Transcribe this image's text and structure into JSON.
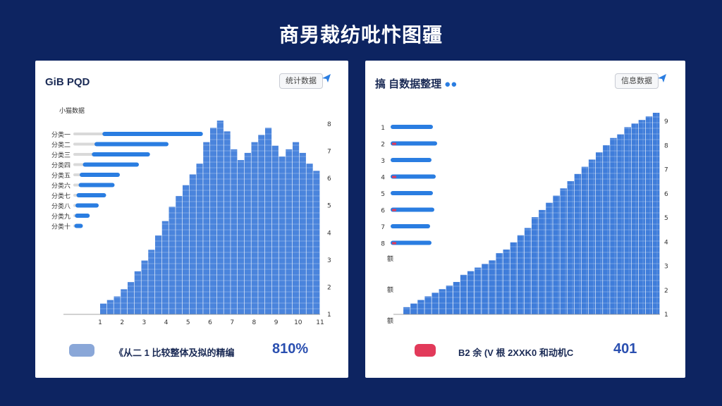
{
  "page": {
    "title": "商男裁纺吡忭图疆"
  },
  "chart_data": [
    {
      "type": "bar",
      "title": "GiB PQD",
      "button_label": "统计数据",
      "subtitle": "小猫数据",
      "categories": [
        "分类一",
        "分类二",
        "分类三",
        "分类四",
        "分类五",
        "分类六",
        "分类七",
        "分类八",
        "分类九",
        "分类十"
      ],
      "values": [
        95,
        70,
        55,
        53,
        38,
        34,
        28,
        22,
        14,
        8
      ],
      "secondary_values": [
        55,
        40,
        35,
        18,
        12,
        10,
        6,
        4,
        3,
        2
      ],
      "histogram": [
        6,
        8,
        10,
        14,
        18,
        24,
        30,
        36,
        44,
        52,
        60,
        66,
        72,
        78,
        84,
        96,
        104,
        108,
        102,
        92,
        86,
        90,
        96,
        100,
        104,
        94,
        88,
        92,
        96,
        90,
        84,
        80
      ],
      "y_ticks_right": [
        "8",
        "7",
        "6",
        "5",
        "4",
        "3",
        "2",
        "1"
      ],
      "x_ticks": [
        "1",
        "2",
        "3",
        "4",
        "5",
        "6",
        "7",
        "8",
        "9",
        "10",
        "11"
      ],
      "footer": {
        "text": "《从二 1 比较整体及拟的精编",
        "value": "810%"
      },
      "colors": {
        "bar": "#2a7de1",
        "histogram": "#2a6fd6",
        "track": "#d9d9d9"
      }
    },
    {
      "type": "bar",
      "title": "搞 自数据整理",
      "button_label": "信息数据",
      "categories": [
        "1",
        "2",
        "3",
        "4",
        "5",
        "6",
        "7",
        "8"
      ],
      "values": [
        60,
        66,
        58,
        64,
        60,
        62,
        56,
        58
      ],
      "histogram": [
        4,
        6,
        8,
        10,
        12,
        14,
        16,
        18,
        22,
        24,
        26,
        28,
        30,
        34,
        36,
        40,
        44,
        48,
        54,
        58,
        62,
        66,
        70,
        74,
        78,
        82,
        86,
        90,
        94,
        98,
        100,
        104,
        106,
        108,
        110,
        112
      ],
      "y_ticks_right": [
        "9",
        "8",
        "7",
        "6",
        "5",
        "4",
        "3",
        "2",
        "1"
      ],
      "left_labels": [
        "额",
        "额",
        "额"
      ],
      "footer": {
        "text": "B2 余 (V 根 2XXK0 和动机C",
        "value": "401"
      },
      "colors": {
        "bar": "#2a7de1",
        "histogram": "#2a6fd6",
        "accent": "#e23a5a"
      }
    }
  ]
}
